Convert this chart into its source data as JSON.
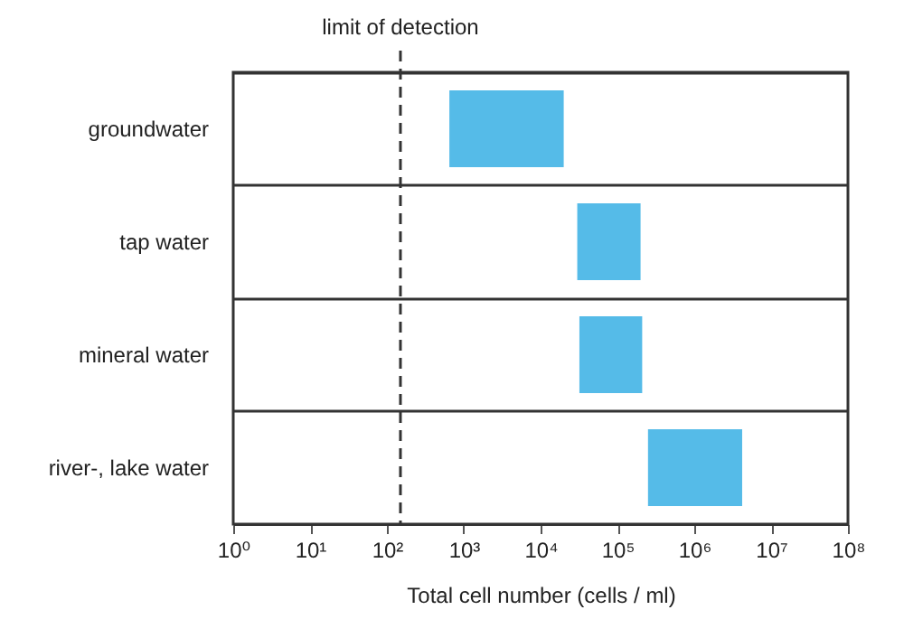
{
  "chart_data": {
    "type": "bar",
    "orientation": "horizontal",
    "log": "x",
    "xlabel": "Total cell number (cells / ml)",
    "categories": [
      "groundwater",
      "tap water",
      "mineral water",
      "river-, lake water"
    ],
    "base": [
      650,
      30000,
      32000,
      250000
    ],
    "values": [
      19350,
      170000,
      178000,
      3950000
    ],
    "color": "#55bbe8",
    "xlim": [
      1,
      100000000
    ],
    "xticks": [
      {
        "value": 1,
        "label": "10⁰"
      },
      {
        "value": 10,
        "label": "10¹"
      },
      {
        "value": 100,
        "label": "10²"
      },
      {
        "value": 1000,
        "label": "10³"
      },
      {
        "value": 10000,
        "label": "10⁴"
      },
      {
        "value": 100000,
        "label": "10⁵"
      },
      {
        "value": 1000000,
        "label": "10⁶"
      },
      {
        "value": 10000000,
        "label": "10⁷"
      },
      {
        "value": 100000000,
        "label": "10⁸"
      }
    ],
    "ref_lines": [
      {
        "axis": "x",
        "value": 150,
        "label": "limit of detection",
        "line_style": "dashed"
      }
    ],
    "grid": "y"
  }
}
